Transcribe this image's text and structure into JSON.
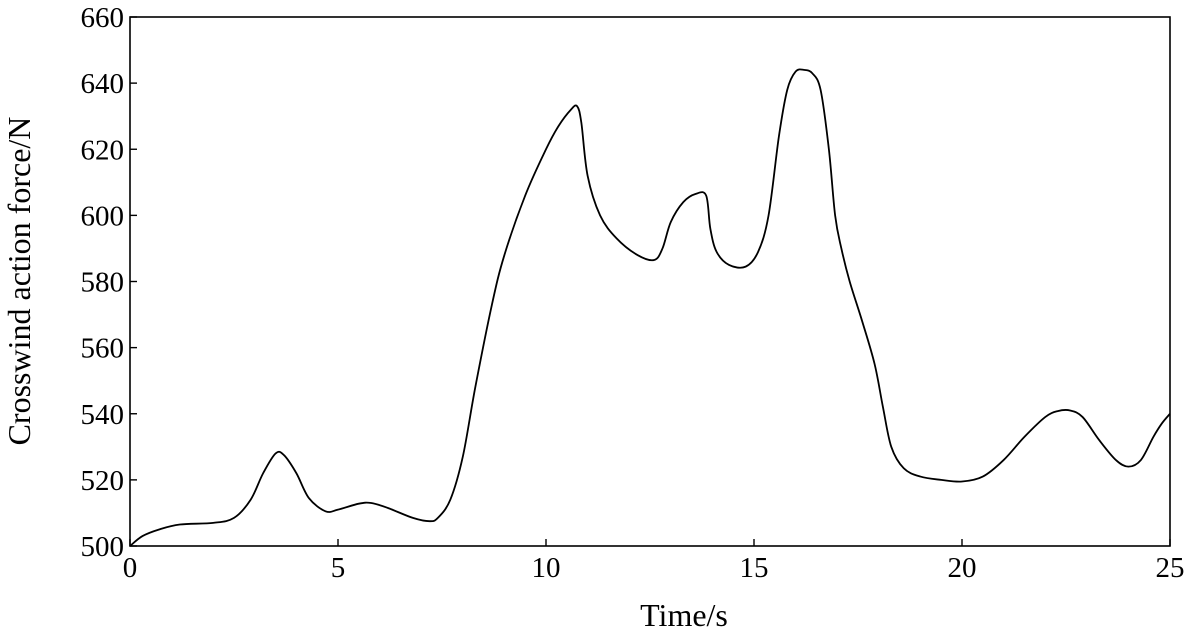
{
  "chart_data": {
    "type": "line",
    "xlabel": "Time/s",
    "ylabel": "Crosswind action force/N",
    "xlim": [
      0,
      25
    ],
    "ylim": [
      500,
      660
    ],
    "x_ticks": [
      "0",
      "5",
      "10",
      "15",
      "20",
      "25"
    ],
    "y_ticks": [
      "500",
      "520",
      "540",
      "560",
      "580",
      "600",
      "620",
      "640",
      "660"
    ],
    "grid": false,
    "series": [
      {
        "color": "#000000",
        "x": [
          0,
          0.3,
          0.7,
          1.2,
          2.0,
          2.5,
          2.9,
          3.2,
          3.5,
          3.7,
          4.0,
          4.3,
          4.7,
          5.0,
          5.5,
          5.8,
          6.2,
          6.8,
          7.2,
          7.4,
          7.7,
          8.0,
          8.3,
          8.7,
          9.0,
          9.5,
          10.0,
          10.3,
          10.6,
          10.75,
          10.85,
          11.0,
          11.3,
          11.7,
          12.2,
          12.6,
          12.8,
          13.0,
          13.3,
          13.6,
          13.85,
          13.95,
          14.1,
          14.4,
          14.8,
          15.1,
          15.35,
          15.6,
          15.8,
          16.0,
          16.2,
          16.4,
          16.6,
          16.8,
          16.95,
          17.1,
          17.3,
          17.6,
          17.9,
          18.1,
          18.3,
          18.6,
          19.0,
          19.5,
          20.0,
          20.5,
          21.0,
          21.5,
          22.0,
          22.3,
          22.6,
          22.9,
          23.3,
          23.7,
          24.0,
          24.3,
          24.6,
          24.8,
          25.0
        ],
        "values": [
          500.0,
          503.0,
          505.0,
          506.5,
          507.0,
          508.5,
          514.0,
          522.0,
          528.0,
          527.5,
          522.0,
          514.5,
          510.5,
          511.0,
          512.8,
          513.0,
          511.5,
          508.5,
          507.5,
          508.5,
          514.0,
          527.0,
          548.0,
          573.0,
          588.0,
          606.0,
          620.0,
          627.0,
          632.0,
          633.0,
          628.0,
          612.0,
          600.0,
          593.0,
          588.0,
          586.5,
          590.0,
          598.0,
          604.0,
          606.5,
          606.0,
          596.0,
          589.0,
          585.0,
          584.5,
          589.0,
          600.0,
          624.0,
          638.0,
          643.5,
          644.0,
          643.0,
          638.0,
          620.0,
          600.0,
          590.0,
          580.0,
          568.0,
          555.0,
          542.0,
          530.0,
          523.5,
          521.0,
          520.0,
          519.5,
          521.0,
          526.0,
          533.0,
          539.0,
          540.8,
          541.0,
          539.0,
          532.0,
          526.0,
          524.0,
          526.0,
          533.0,
          537.0,
          540.0
        ]
      }
    ]
  }
}
